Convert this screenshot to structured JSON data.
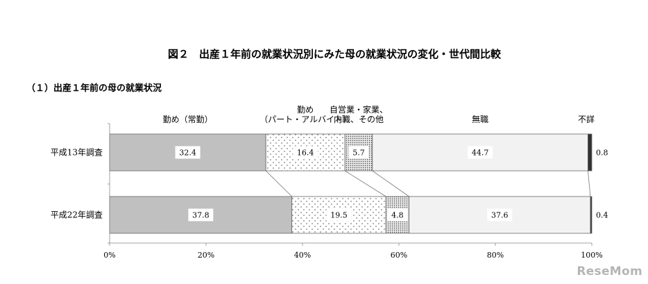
{
  "chart_data": {
    "type": "bar",
    "orientation": "horizontal",
    "stacked": "percent",
    "title": "図２　出産１年前の就業状況別にみた母の就業状況の変化・世代間比較",
    "subtitle": "（１）出産１年前の母の就業状況",
    "categories": [
      "平成13年調査",
      "平成22年調査"
    ],
    "series": [
      {
        "name": "勤め（常勤）",
        "values": [
          32.4,
          37.8
        ],
        "pattern": "solid",
        "color": "#c0c0c0"
      },
      {
        "name": "勤め（パート・アルバイト）",
        "name_lines": [
          "勤め",
          "（パート・アルバイト）"
        ],
        "values": [
          16.4,
          19.5
        ],
        "pattern": "sparse-dots",
        "color": "#ffffff"
      },
      {
        "name": "自営業・家業、内職、その他",
        "name_lines": [
          "自営業・家業、",
          "内職、その他"
        ],
        "values": [
          5.7,
          4.8
        ],
        "pattern": "dense-dots",
        "color": "#d8d8d8"
      },
      {
        "name": "無職",
        "values": [
          44.7,
          37.6
        ],
        "pattern": "solid",
        "color": "#f2f2f2"
      },
      {
        "name": "不詳",
        "values": [
          0.8,
          0.4
        ],
        "pattern": "solid",
        "color": "#333333"
      }
    ],
    "x_ticks": [
      "0%",
      "20%",
      "40%",
      "60%",
      "80%",
      "100%"
    ],
    "xlim": [
      0,
      100
    ],
    "legend": "top",
    "grid": false
  },
  "watermark": "ReseMom"
}
